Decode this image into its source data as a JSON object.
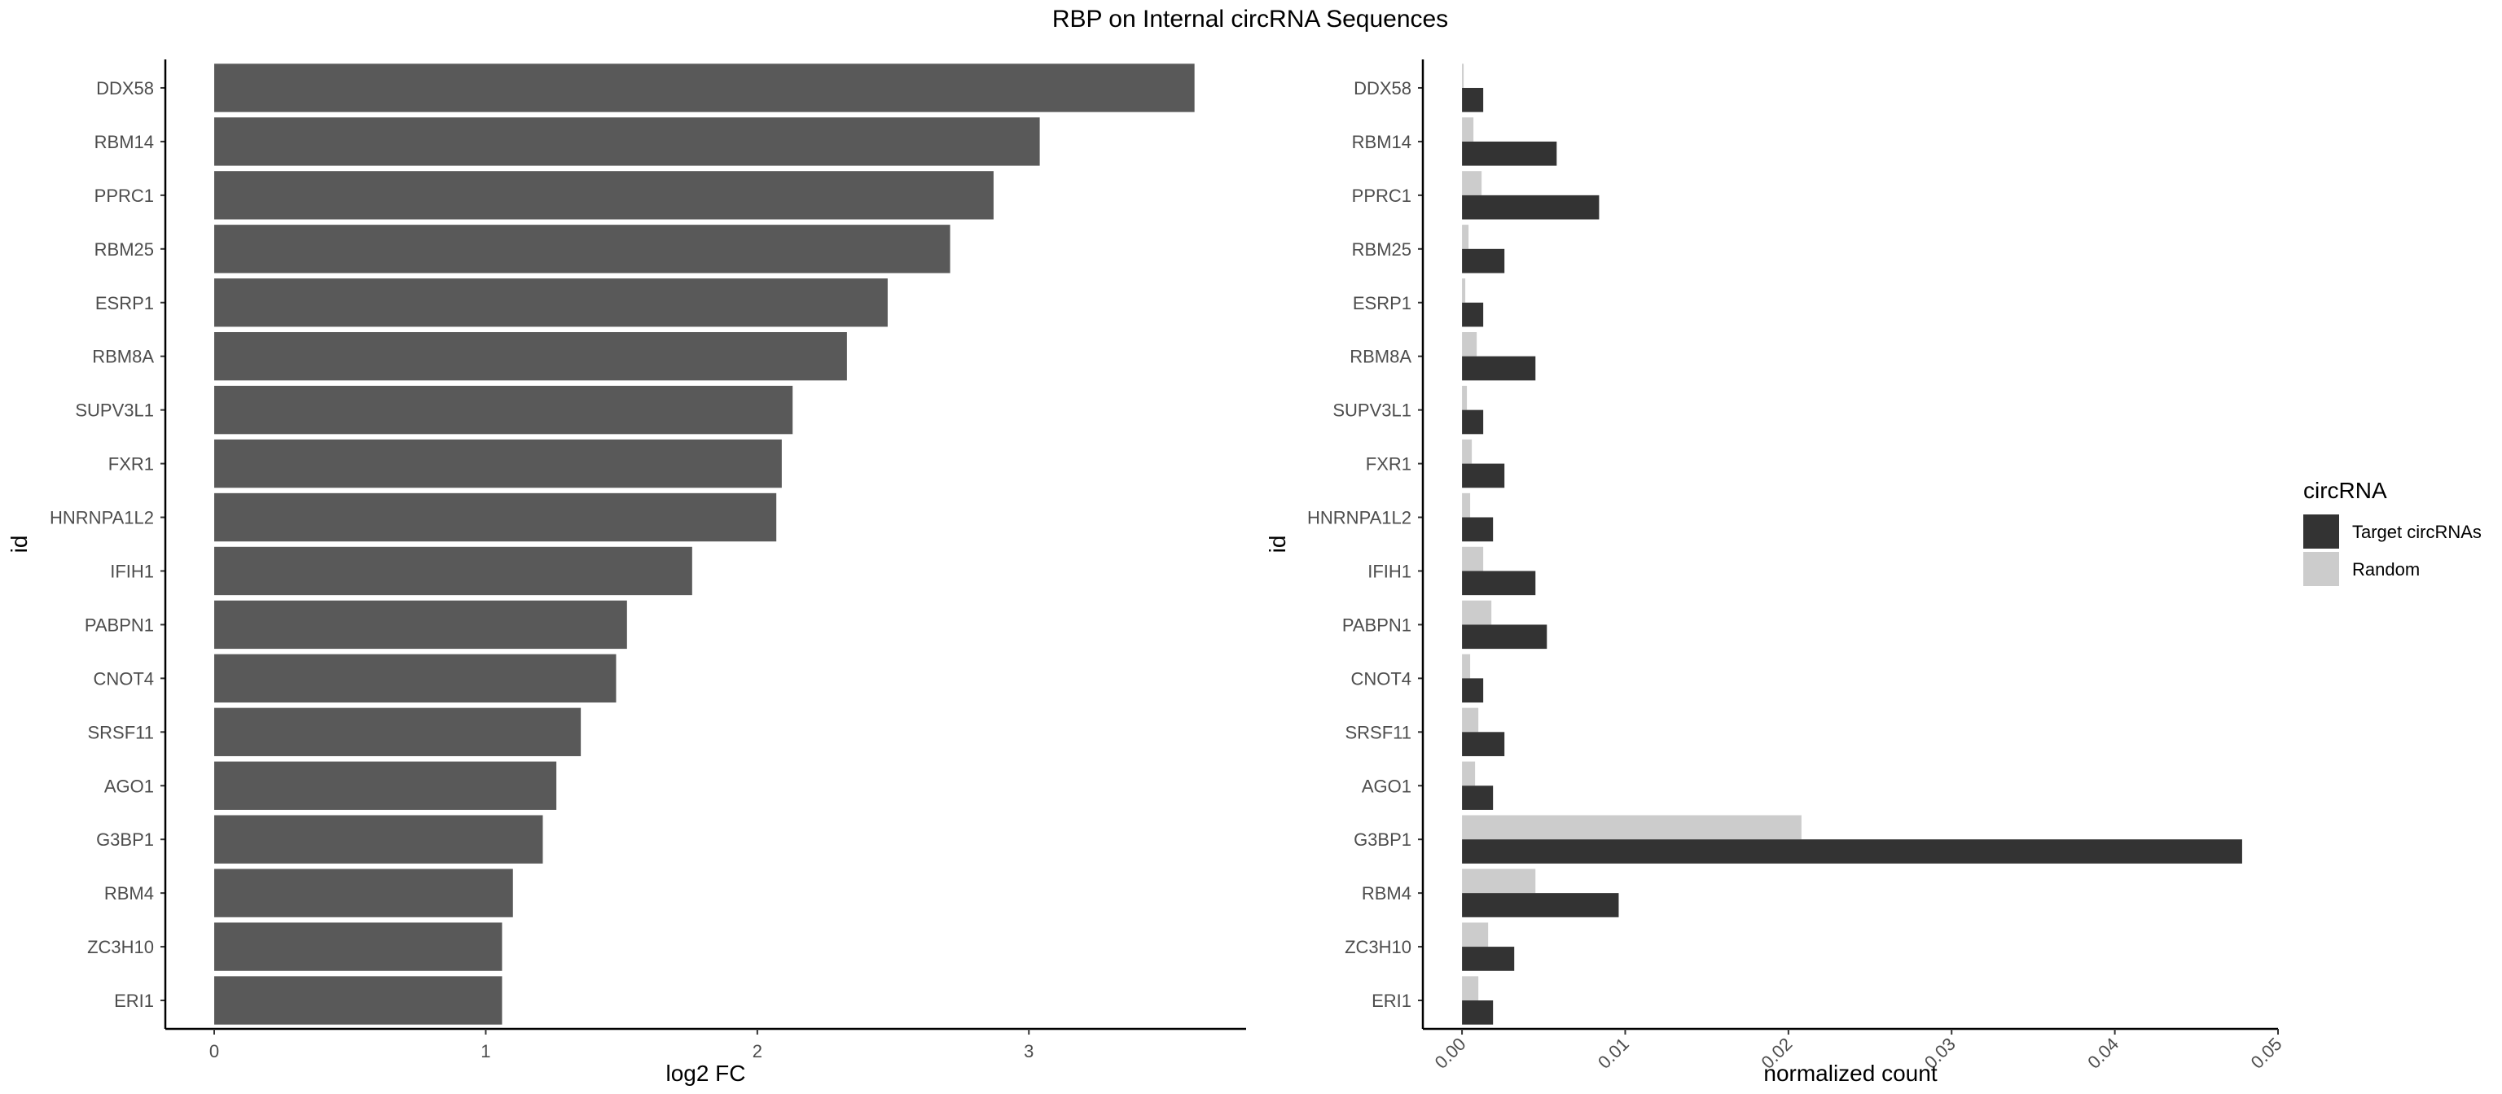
{
  "chart_data": [
    {
      "type": "bar",
      "orientation": "horizontal",
      "title": "RBP on Internal circRNA Sequences",
      "xlabel": "log2 FC",
      "ylabel": "id",
      "categories": [
        "DDX58",
        "RBM14",
        "PPRC1",
        "RBM25",
        "ESRP1",
        "RBM8A",
        "SUPV3L1",
        "FXR1",
        "HNRNPA1L2",
        "IFIH1",
        "PABPN1",
        "CNOT4",
        "SRSF11",
        "AGO1",
        "G3BP1",
        "RBM4",
        "ZC3H10",
        "ERI1"
      ],
      "values": [
        3.61,
        3.04,
        2.87,
        2.71,
        2.48,
        2.33,
        2.13,
        2.09,
        2.07,
        1.76,
        1.52,
        1.48,
        1.35,
        1.26,
        1.21,
        1.1,
        1.06,
        1.06
      ],
      "xlim": [
        -0.18,
        3.8
      ],
      "xticks": [
        "0",
        "1",
        "2",
        "3"
      ],
      "grid": false,
      "color": "#595959"
    },
    {
      "type": "bar",
      "orientation": "horizontal",
      "xlabel": "normalized count",
      "ylabel": "id",
      "categories": [
        "DDX58",
        "RBM14",
        "PPRC1",
        "RBM25",
        "ESRP1",
        "RBM8A",
        "SUPV3L1",
        "FXR1",
        "HNRNPA1L2",
        "IFIH1",
        "PABPN1",
        "CNOT4",
        "SRSF11",
        "AGO1",
        "G3BP1",
        "RBM4",
        "ZC3H10",
        "ERI1"
      ],
      "series": [
        {
          "name": "Target circRNAs",
          "color": "#333333",
          "values": [
            0.0013,
            0.0058,
            0.0084,
            0.0026,
            0.0013,
            0.0045,
            0.0013,
            0.0026,
            0.0019,
            0.0045,
            0.0052,
            0.0013,
            0.0026,
            0.0019,
            0.0478,
            0.0096,
            0.0032,
            0.0019
          ]
        },
        {
          "name": "Random",
          "color": "#cccccc",
          "values": [
            0.0001,
            0.0007,
            0.0012,
            0.0004,
            0.0002,
            0.0009,
            0.0003,
            0.0006,
            0.0005,
            0.0013,
            0.0018,
            0.0005,
            0.001,
            0.0008,
            0.0208,
            0.0045,
            0.0016,
            0.001
          ]
        }
      ],
      "xlim": [
        -0.0024,
        0.05
      ],
      "xticks": [
        "0.00",
        "0.01",
        "0.02",
        "0.03",
        "0.04",
        "0.05"
      ],
      "grid": false,
      "legend": {
        "title": "circRNA",
        "placement": "right"
      }
    }
  ]
}
